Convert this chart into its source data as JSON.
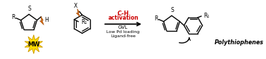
{
  "background_color": "#ffffff",
  "fig_width": 3.78,
  "fig_height": 0.84,
  "dpi": 100,
  "ch_activation_color": "#cc0000",
  "ch_activation_text": "C-H\nactivation",
  "gvl_text": "GVL",
  "conditions_text": "Low Pd loading\nLigand-free",
  "mw_text": "MW",
  "polythiophenes_text": "Polythiophenes",
  "bond_color": "#000000",
  "lightning_color": "#dd6600",
  "star_color": "#ffdd00",
  "star_edge": "#cc9900",
  "R_label": "R",
  "S_label": "S",
  "H_label": "H",
  "X_label": "X",
  "R1_label": "R₁"
}
